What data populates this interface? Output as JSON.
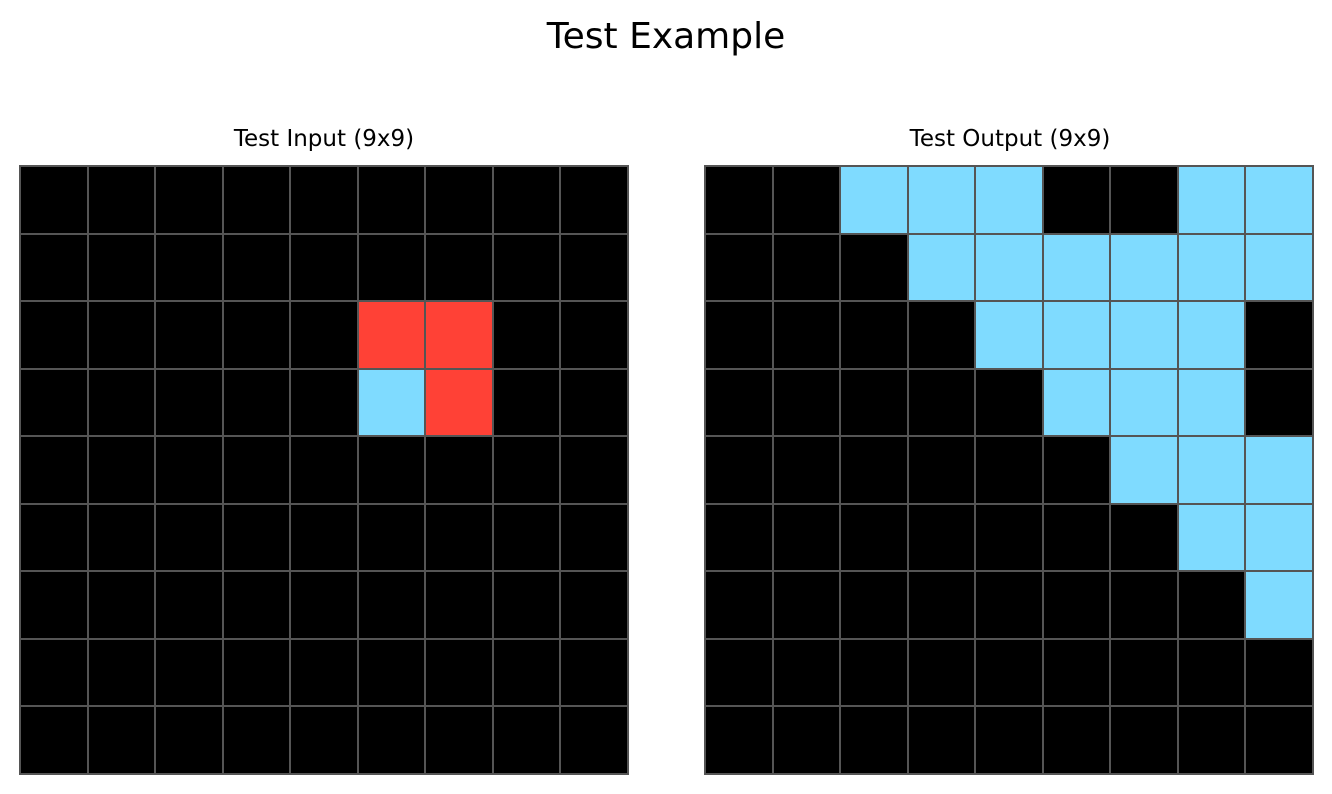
{
  "title": "Test Example",
  "palette": {
    "0": "#000000",
    "2": "#ff4136",
    "8": "#7fdbff"
  },
  "grid_line_color": "#555555",
  "panels": [
    {
      "title": "Test Input (9x9)",
      "rows": [
        [
          0,
          0,
          0,
          0,
          0,
          0,
          0,
          0,
          0
        ],
        [
          0,
          0,
          0,
          0,
          0,
          0,
          0,
          0,
          0
        ],
        [
          0,
          0,
          0,
          0,
          0,
          2,
          2,
          0,
          0
        ],
        [
          0,
          0,
          0,
          0,
          0,
          8,
          2,
          0,
          0
        ],
        [
          0,
          0,
          0,
          0,
          0,
          0,
          0,
          0,
          0
        ],
        [
          0,
          0,
          0,
          0,
          0,
          0,
          0,
          0,
          0
        ],
        [
          0,
          0,
          0,
          0,
          0,
          0,
          0,
          0,
          0
        ],
        [
          0,
          0,
          0,
          0,
          0,
          0,
          0,
          0,
          0
        ],
        [
          0,
          0,
          0,
          0,
          0,
          0,
          0,
          0,
          0
        ]
      ]
    },
    {
      "title": "Test Output (9x9)",
      "rows": [
        [
          0,
          0,
          8,
          8,
          8,
          0,
          0,
          8,
          8
        ],
        [
          0,
          0,
          0,
          8,
          8,
          8,
          8,
          8,
          8
        ],
        [
          0,
          0,
          0,
          0,
          8,
          8,
          8,
          8,
          0
        ],
        [
          0,
          0,
          0,
          0,
          0,
          8,
          8,
          8,
          0
        ],
        [
          0,
          0,
          0,
          0,
          0,
          0,
          8,
          8,
          8
        ],
        [
          0,
          0,
          0,
          0,
          0,
          0,
          0,
          8,
          8
        ],
        [
          0,
          0,
          0,
          0,
          0,
          0,
          0,
          0,
          8
        ],
        [
          0,
          0,
          0,
          0,
          0,
          0,
          0,
          0,
          0
        ],
        [
          0,
          0,
          0,
          0,
          0,
          0,
          0,
          0,
          0
        ]
      ]
    }
  ]
}
